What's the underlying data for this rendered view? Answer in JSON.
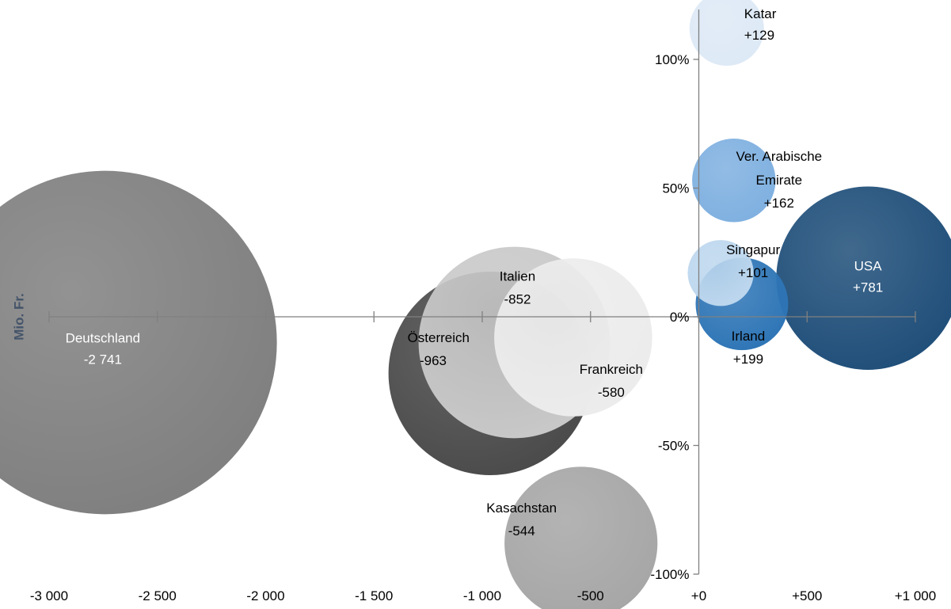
{
  "chart_data": {
    "type": "scatter",
    "title": "",
    "xlabel": "",
    "ylabel": "Mio. Fr.",
    "xlim": [
      -3000,
      1000
    ],
    "ylim": [
      -1.0,
      1.2
    ],
    "x_ticks": [
      -3000,
      -2500,
      -2000,
      -1500,
      -1000,
      -500,
      0,
      500,
      1000
    ],
    "x_tick_labels": [
      "-3 000",
      "-2 500",
      "-2 000",
      "-1 500",
      "-1 000",
      "-500",
      "+0",
      "+500",
      "+1 000"
    ],
    "y_ticks": [
      1.0,
      0.5,
      0.0,
      -0.5,
      -1.0
    ],
    "y_tick_labels": [
      "100%",
      "50%",
      "0%",
      "-50%",
      "-100%"
    ],
    "grid": false,
    "legend": "none",
    "points": [
      {
        "name": "Katar",
        "value_label": "+129",
        "x": 129,
        "y": 1.12,
        "size": 129,
        "color": "#dde9f6"
      },
      {
        "name": "Ver. Arabische Emirate",
        "name_lines": [
          "Ver. Arabische",
          "Emirate"
        ],
        "value_label": "+162",
        "x": 162,
        "y": 0.53,
        "size": 162,
        "color": "#7fb0e0"
      },
      {
        "name": "Singapur",
        "value_label": "+101",
        "x": 101,
        "y": 0.17,
        "size": 101,
        "color": "#bdd7ee"
      },
      {
        "name": "Irland",
        "value_label": "+199",
        "x": 199,
        "y": 0.05,
        "size": 199,
        "color": "#2e75b6"
      },
      {
        "name": "USA",
        "value_label": "+781",
        "x": 781,
        "y": 0.15,
        "size": 781,
        "color": "#1f4e79"
      },
      {
        "name": "Deutschland",
        "value_label": "-2 741",
        "x": -2741,
        "y": -0.1,
        "size": 2741,
        "color": "#7f7f7f"
      },
      {
        "name": "Italien",
        "value_label": "-852",
        "x": -852,
        "y": -0.1,
        "size": 852,
        "color": "#c9c9c9"
      },
      {
        "name": "Frankreich",
        "value_label": "-580",
        "x": -580,
        "y": -0.08,
        "size": 580,
        "color": "#ececec"
      },
      {
        "name": "Österreich",
        "value_label": "-963",
        "x": -963,
        "y": -0.22,
        "size": 963,
        "color": "#4a4a4a"
      },
      {
        "name": "Kasachstan",
        "value_label": "-544",
        "x": -544,
        "y": -0.88,
        "size": 544,
        "color": "#a6a6a6"
      }
    ]
  }
}
